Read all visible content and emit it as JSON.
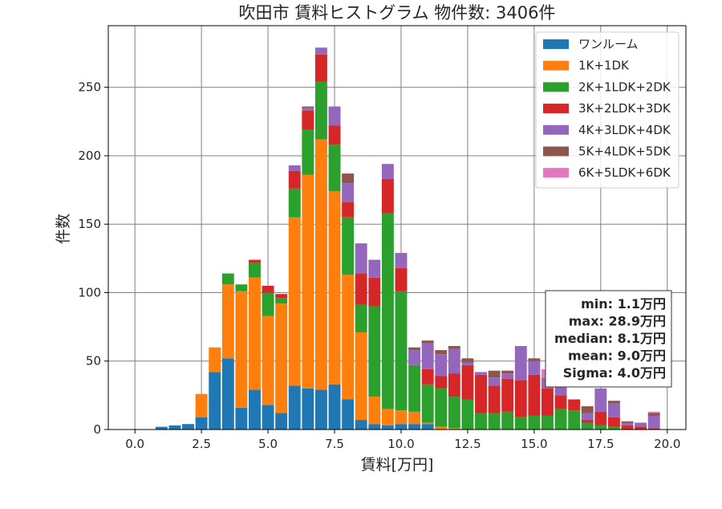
{
  "chart_data": {
    "type": "bar",
    "stacked": true,
    "title": "吹田市 賃料ヒストグラム  物件数: 3406件",
    "xlabel": "賃料[万円]",
    "ylabel": "件数",
    "xlim": [
      -1.0,
      20.7
    ],
    "ylim": [
      0,
      295
    ],
    "xticks": [
      0.0,
      2.5,
      5.0,
      7.5,
      10.0,
      12.5,
      15.0,
      17.5,
      20.0
    ],
    "xtick_labels": [
      "0.0",
      "2.5",
      "5.0",
      "7.5",
      "10.0",
      "12.5",
      "15.0",
      "17.5",
      "20.0"
    ],
    "yticks": [
      0,
      50,
      100,
      150,
      200,
      250
    ],
    "ytick_labels": [
      "0",
      "50",
      "100",
      "150",
      "200",
      "250"
    ],
    "grid": true,
    "bin_width": 0.5,
    "x": [
      1.0,
      1.5,
      2.0,
      2.5,
      3.0,
      3.5,
      4.0,
      4.5,
      5.0,
      5.5,
      6.0,
      6.5,
      7.0,
      7.5,
      8.0,
      8.5,
      9.0,
      9.5,
      10.0,
      10.5,
      11.0,
      11.5,
      12.0,
      12.5,
      13.0,
      13.5,
      14.0,
      14.5,
      15.0,
      15.5,
      16.0,
      16.5,
      17.0,
      17.5,
      18.0,
      18.5,
      19.0,
      19.5
    ],
    "legend_position": "top-right",
    "series": [
      {
        "name": "ワンルーム",
        "color": "#1f77b4",
        "values": [
          2,
          3,
          4,
          9,
          42,
          52,
          16,
          29,
          18,
          12,
          32,
          30,
          29,
          33,
          22,
          7,
          4,
          3,
          4,
          4,
          4,
          0,
          0,
          0,
          0,
          0,
          0,
          0,
          0,
          0,
          0,
          0,
          0,
          0,
          0,
          0,
          0,
          0
        ]
      },
      {
        "name": "1K+1DK",
        "color": "#ff7f0e",
        "values": [
          0,
          0,
          0,
          17,
          18,
          54,
          85,
          82,
          65,
          80,
          123,
          156,
          183,
          141,
          91,
          64,
          20,
          12,
          10,
          9,
          1,
          2,
          1,
          0,
          0,
          0,
          0,
          0,
          0,
          0,
          0,
          0,
          0,
          0,
          0,
          0,
          0,
          0
        ]
      },
      {
        "name": "2K+1LDK+2DK",
        "color": "#2ca02c",
        "values": [
          0,
          0,
          0,
          0,
          0,
          8,
          5,
          11,
          17,
          4,
          21,
          33,
          42,
          34,
          42,
          20,
          66,
          143,
          87,
          34,
          28,
          28,
          23,
          22,
          12,
          12,
          13,
          9,
          10,
          10,
          15,
          14,
          5,
          3,
          2,
          0,
          0,
          0
        ]
      },
      {
        "name": "3K+2LDK+3DK",
        "color": "#d62728",
        "values": [
          0,
          0,
          0,
          0,
          0,
          0,
          0,
          2,
          5,
          3,
          13,
          14,
          20,
          14,
          11,
          23,
          21,
          25,
          17,
          0,
          11,
          9,
          17,
          25,
          28,
          20,
          24,
          27,
          30,
          20,
          10,
          8,
          2,
          10,
          7,
          3,
          2,
          1
        ]
      },
      {
        "name": "4K+3LDK+4DK",
        "color": "#9467bd",
        "values": [
          0,
          0,
          0,
          0,
          0,
          0,
          0,
          0,
          0,
          0,
          4,
          2,
          5,
          14,
          14,
          22,
          13,
          11,
          11,
          11,
          19,
          16,
          18,
          2,
          2,
          6,
          4,
          25,
          10,
          8,
          9,
          0,
          5,
          17,
          10,
          2,
          3,
          9
        ]
      },
      {
        "name": "5K+4LDK+5DK",
        "color": "#8c564b",
        "values": [
          0,
          0,
          0,
          0,
          0,
          0,
          0,
          0,
          0,
          0,
          0,
          1,
          0,
          0,
          7,
          0,
          0,
          0,
          0,
          2,
          2,
          3,
          2,
          3,
          0,
          5,
          2,
          0,
          2,
          0,
          4,
          0,
          5,
          0,
          2,
          1,
          0,
          2
        ]
      },
      {
        "name": "6K+5LDK+6DK",
        "color": "#e377c2",
        "values": [
          0,
          0,
          0,
          0,
          0,
          0,
          0,
          0,
          0,
          0,
          0,
          0,
          0,
          0,
          0,
          0,
          0,
          0,
          0,
          0,
          0,
          0,
          0,
          0,
          0,
          0,
          0,
          0,
          0,
          6,
          0,
          0,
          0,
          0,
          0,
          0,
          0,
          1
        ]
      }
    ],
    "stats_box": [
      "min: 1.1万円",
      "max: 28.9万円",
      "median: 8.1万円",
      "mean: 9.0万円",
      "Sigma: 4.0万円"
    ]
  }
}
